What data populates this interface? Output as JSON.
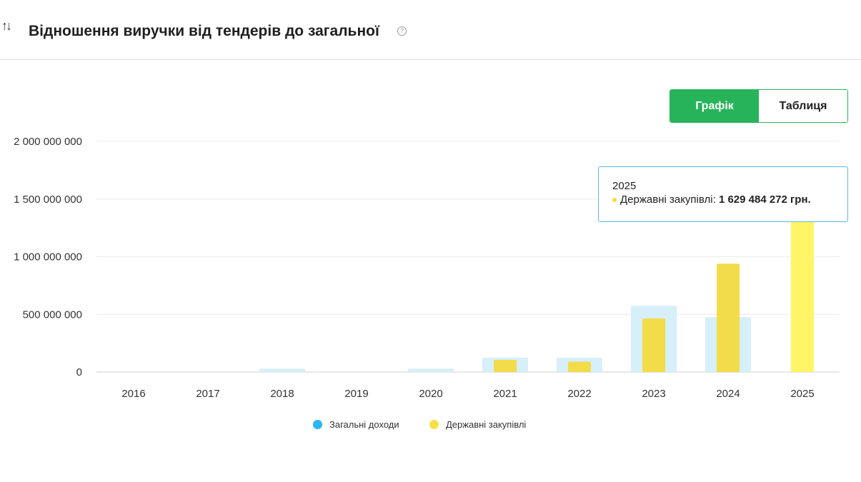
{
  "header": {
    "sort_icon": "↑↓",
    "title": "Відношення виручки від тендерів до загальної",
    "help_icon": "?"
  },
  "toggle": {
    "chart_label": "Графік",
    "table_label": "Таблиця"
  },
  "legend": [
    {
      "label": "Загальні доходи",
      "color": "#29b6f6"
    },
    {
      "label": "Державні закупівлі",
      "color": "#f7df4a"
    }
  ],
  "tooltip": {
    "year": "2025",
    "series_label": "Державні закупівлі:",
    "value_text": "1 629 484 272 грн."
  },
  "colors": {
    "income_bar": "#d6eff9",
    "procurement_bar": "#f3dc4a",
    "procurement_highlight": "#fff566",
    "accent": "#27b35a"
  },
  "chart_data": {
    "type": "bar",
    "categories": [
      "2016",
      "2017",
      "2018",
      "2019",
      "2020",
      "2021",
      "2022",
      "2023",
      "2024",
      "2025"
    ],
    "series": [
      {
        "name": "Загальні доходи",
        "values": [
          0,
          0,
          30000000,
          0,
          30000000,
          125000000,
          125000000,
          575000000,
          475000000,
          0
        ]
      },
      {
        "name": "Державні закупівлі",
        "values": [
          0,
          0,
          0,
          0,
          0,
          105000000,
          90000000,
          465000000,
          940000000,
          1629484272
        ]
      }
    ],
    "ylim": [
      0,
      2000000000
    ],
    "yticks": [
      0,
      500000000,
      1000000000,
      1500000000,
      2000000000
    ],
    "ytick_labels": [
      "0",
      "500 000 000",
      "1 000 000 000",
      "1 500 000 000",
      "2 000 000 000"
    ],
    "grid": true,
    "legend_position": "bottom"
  }
}
